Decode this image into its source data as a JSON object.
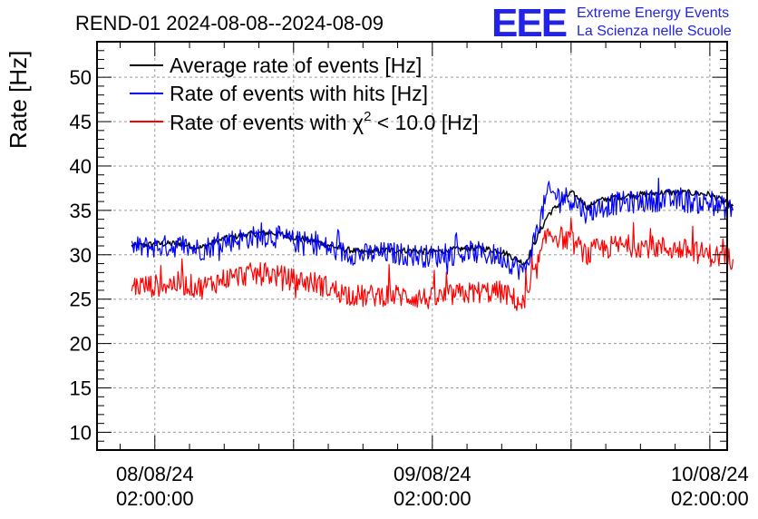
{
  "header": {
    "title": "REND-01 2024-08-08--2024-08-09",
    "logo_letters": "EEE",
    "logo_line1": "Extreme Energy Events",
    "logo_line2": "La Scienza nelle Scuole"
  },
  "colors": {
    "average": "#000000",
    "hits": "#0000ff",
    "chi2": "#ff0000",
    "logo": "#2323e6"
  },
  "chart_data": {
    "type": "line",
    "title": "REND-01 2024-08-08--2024-08-09",
    "ylabel": "Rate [Hz]",
    "xlabel": "",
    "ylim": [
      8,
      54
    ],
    "y_ticks": [
      10,
      15,
      20,
      25,
      30,
      35,
      40,
      45,
      50
    ],
    "xlim": [
      "2024-08-07T21:00:00",
      "2024-08-10T03:30:00"
    ],
    "x_ticks": [
      {
        "date": "08/08/24",
        "time": "02:00:00"
      },
      {
        "date": "09/08/24",
        "time": "02:00:00"
      },
      {
        "date": "10/08/24",
        "time": "02:00:00"
      }
    ],
    "grid": true,
    "legend_position": "top-left",
    "x_times": [
      "2024-08-08T00:00",
      "2024-08-08T02:00",
      "2024-08-08T04:00",
      "2024-08-08T06:00",
      "2024-08-08T08:00",
      "2024-08-08T10:00",
      "2024-08-08T12:00",
      "2024-08-08T14:00",
      "2024-08-08T16:00",
      "2024-08-08T18:00",
      "2024-08-08T20:00",
      "2024-08-08T22:00",
      "2024-08-09T00:00",
      "2024-08-09T02:00",
      "2024-08-09T04:00",
      "2024-08-09T06:00",
      "2024-08-09T08:00",
      "2024-08-09T10:00",
      "2024-08-09T12:00",
      "2024-08-09T14:00",
      "2024-08-09T15:00",
      "2024-08-09T15:30",
      "2024-08-09T16:00",
      "2024-08-09T18:00",
      "2024-08-09T20:00",
      "2024-08-09T22:00",
      "2024-08-10T00:00",
      "2024-08-10T02:00",
      "2024-08-10T04:00"
    ],
    "series": [
      {
        "name": "Average rate of events [Hz]",
        "color": "#000000",
        "values": [
          31.0,
          31.2,
          31.3,
          30.8,
          31.8,
          32.3,
          32.5,
          32.0,
          31.5,
          30.7,
          30.3,
          30.5,
          30.5,
          30.3,
          30.6,
          30.8,
          30.4,
          29.0,
          34.5,
          37.0,
          36.0,
          35.2,
          36.0,
          36.5,
          36.8,
          37.0,
          37.0,
          36.8,
          35.5
        ]
      },
      {
        "name": "Rate of events with hits [Hz]",
        "color": "#0000ff",
        "values": [
          30.8,
          30.9,
          31.0,
          30.6,
          31.5,
          31.9,
          32.2,
          31.5,
          31.2,
          30.3,
          30.0,
          30.2,
          30.0,
          29.8,
          30.1,
          30.2,
          29.8,
          28.0,
          37.0,
          36.3,
          35.2,
          34.5,
          35.2,
          35.8,
          36.0,
          36.2,
          36.0,
          35.8,
          35.0
        ]
      },
      {
        "name": "Rate of events with χ² < 10.0 [Hz]",
        "color": "#ff0000",
        "values": [
          26.5,
          26.5,
          26.8,
          26.3,
          27.3,
          27.8,
          27.8,
          27.2,
          26.8,
          25.8,
          25.3,
          25.5,
          25.3,
          25.0,
          25.5,
          25.8,
          25.8,
          24.3,
          32.5,
          31.5,
          30.5,
          29.8,
          30.5,
          31.0,
          31.0,
          30.8,
          30.5,
          30.0,
          29.5
        ]
      }
    ],
    "legend": {
      "entry1": "Average rate of events [Hz]",
      "entry2": "Rate of events with hits [Hz]",
      "entry3_prefix": "Rate of events with ",
      "entry3_chi": "χ",
      "entry3_sup": "2",
      "entry3_suffix": " < 10.0 [Hz]"
    }
  }
}
